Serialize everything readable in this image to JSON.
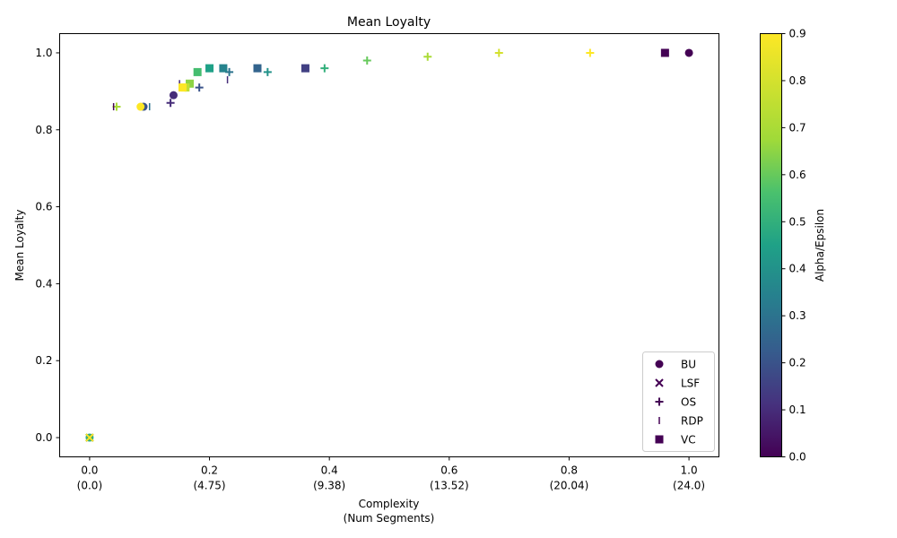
{
  "chart_data": {
    "type": "scatter",
    "title": "Mean Loyalty",
    "xlabel_line1": "Complexity",
    "xlabel_line2": "(Num Segments)",
    "ylabel": "Mean Loyalty",
    "xlim": [
      -0.05,
      1.05
    ],
    "ylim": [
      -0.05,
      1.05
    ],
    "x_ticks": [
      {
        "value": 0.0,
        "label": "0.0",
        "sub": "(0.0)"
      },
      {
        "value": 0.2,
        "label": "0.2",
        "sub": "(4.75)"
      },
      {
        "value": 0.4,
        "label": "0.4",
        "sub": "(9.38)"
      },
      {
        "value": 0.6,
        "label": "0.6",
        "sub": "(13.52)"
      },
      {
        "value": 0.8,
        "label": "0.8",
        "sub": "(20.04)"
      },
      {
        "value": 1.0,
        "label": "1.0",
        "sub": "(24.0)"
      }
    ],
    "y_ticks": [
      {
        "value": 0.0,
        "label": "0.0"
      },
      {
        "value": 0.2,
        "label": "0.2"
      },
      {
        "value": 0.4,
        "label": "0.4"
      },
      {
        "value": 0.6,
        "label": "0.6"
      },
      {
        "value": 0.8,
        "label": "0.8"
      },
      {
        "value": 1.0,
        "label": "1.0"
      }
    ],
    "grid": false,
    "legend_position": "bottom-right",
    "colorbar": {
      "label": "Alpha/Epsilon",
      "min": 0.0,
      "max": 0.9,
      "colormap": "viridis",
      "ticks": [
        {
          "value": 0.0,
          "label": "0.0"
        },
        {
          "value": 0.1,
          "label": "0.1"
        },
        {
          "value": 0.2,
          "label": "0.2"
        },
        {
          "value": 0.3,
          "label": "0.3"
        },
        {
          "value": 0.4,
          "label": "0.4"
        },
        {
          "value": 0.5,
          "label": "0.5"
        },
        {
          "value": 0.6,
          "label": "0.6"
        },
        {
          "value": 0.7,
          "label": "0.7"
        },
        {
          "value": 0.8,
          "label": "0.8"
        },
        {
          "value": 0.9,
          "label": "0.9"
        }
      ]
    },
    "series": [
      {
        "name": "BU",
        "marker": "circle",
        "points": [
          {
            "x": 1.0,
            "y": 1.0,
            "c": 0.0
          },
          {
            "x": 0.14,
            "y": 0.89,
            "c": 0.1
          },
          {
            "x": 0.09,
            "y": 0.86,
            "c": 0.2
          },
          {
            "x": 0.085,
            "y": 0.86,
            "c": 0.9
          },
          {
            "x": 0.0,
            "y": 0.0,
            "c": 0.5
          }
        ]
      },
      {
        "name": "LSF",
        "marker": "x",
        "points": [
          {
            "x": 0.0,
            "y": 0.0,
            "c": 0.0
          },
          {
            "x": 0.0,
            "y": 0.0,
            "c": 0.5
          },
          {
            "x": 0.0,
            "y": 0.0,
            "c": 0.9
          }
        ]
      },
      {
        "name": "OS",
        "marker": "plus",
        "points": [
          {
            "x": 0.835,
            "y": 1.0,
            "c": 0.9
          },
          {
            "x": 0.683,
            "y": 1.0,
            "c": 0.8
          },
          {
            "x": 0.564,
            "y": 0.99,
            "c": 0.7
          },
          {
            "x": 0.463,
            "y": 0.98,
            "c": 0.6
          },
          {
            "x": 0.392,
            "y": 0.96,
            "c": 0.5
          },
          {
            "x": 0.297,
            "y": 0.95,
            "c": 0.4
          },
          {
            "x": 0.233,
            "y": 0.95,
            "c": 0.3
          },
          {
            "x": 0.183,
            "y": 0.91,
            "c": 0.2
          },
          {
            "x": 0.135,
            "y": 0.87,
            "c": 0.1
          },
          {
            "x": 0.045,
            "y": 0.86,
            "c": 0.7
          },
          {
            "x": 0.16,
            "y": 0.91,
            "c": 0.6
          }
        ]
      },
      {
        "name": "RDP",
        "marker": "vline",
        "points": [
          {
            "x": 0.23,
            "y": 0.93,
            "c": 0.1
          },
          {
            "x": 0.15,
            "y": 0.92,
            "c": 0.1
          },
          {
            "x": 0.04,
            "y": 0.86,
            "c": 0.0
          },
          {
            "x": 0.1,
            "y": 0.86,
            "c": 0.3
          }
        ]
      },
      {
        "name": "VC",
        "marker": "square",
        "points": [
          {
            "x": 0.96,
            "y": 1.0,
            "c": 0.0
          },
          {
            "x": 0.36,
            "y": 0.96,
            "c": 0.15
          },
          {
            "x": 0.28,
            "y": 0.96,
            "c": 0.25
          },
          {
            "x": 0.223,
            "y": 0.96,
            "c": 0.35
          },
          {
            "x": 0.2,
            "y": 0.96,
            "c": 0.45
          },
          {
            "x": 0.18,
            "y": 0.95,
            "c": 0.55
          },
          {
            "x": 0.167,
            "y": 0.92,
            "c": 0.65
          },
          {
            "x": 0.16,
            "y": 0.91,
            "c": 0.75
          },
          {
            "x": 0.155,
            "y": 0.91,
            "c": 0.9
          }
        ]
      }
    ]
  }
}
